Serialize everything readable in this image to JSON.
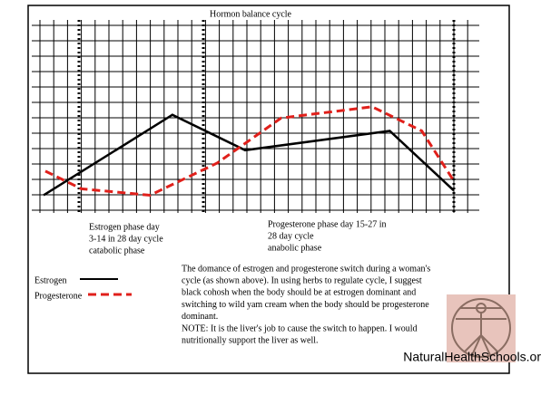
{
  "chart_data": {
    "type": "line",
    "title": "Hormon balance cycle",
    "xlim": [
      0,
      28
    ],
    "ylim": [
      0,
      12
    ],
    "series": [
      {
        "name": "Estrogen",
        "color": "#000000",
        "dash": false,
        "x": [
          0.74,
          8.8,
          13.35,
          22.4,
          26.4
        ],
        "values": [
          1.1,
          6.1,
          3.9,
          5.1,
          1.4
        ]
      },
      {
        "name": "Progesterone",
        "color": "#e0201b",
        "dash": true,
        "x": [
          0.85,
          3.1,
          7.4,
          11.6,
          15.6,
          21.3,
          24.4,
          26.4
        ],
        "values": [
          2.6,
          1.5,
          1.1,
          3.1,
          5.9,
          6.6,
          5.1,
          2.0
        ]
      }
    ],
    "annotations": {
      "estrogen_phase": [
        "Estrogen phase day",
        "3-14 in 28 day cycle",
        "catabolic phase"
      ],
      "progesterone_phase": [
        "Progesterone phase day 15-27 in",
        "28 day cycle",
        "anabolic phase"
      ],
      "body": [
        "The domance of estrogen and progesterone switch during a woman's",
        "cycle (as shown above).  In  using herbs to regulate cycle, I suggest",
        "black cohosh when the body should be at estrogen dominant and",
        "switching to wild yam cream when the body should be progesterone",
        "dominant.",
        "NOTE:  It is the liver's job to cause the switch to happen.  I would",
        "nutritionally  support the liver as well."
      ],
      "website": "NaturalHealthSchools.org"
    }
  }
}
